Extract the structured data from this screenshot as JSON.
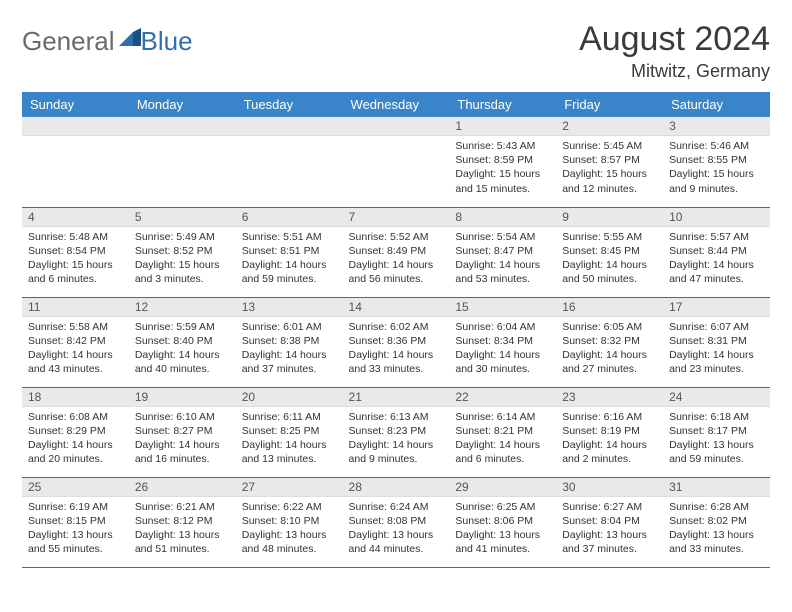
{
  "brand": {
    "part1": "General",
    "part2": "Blue"
  },
  "title": "August 2024",
  "location": "Mitwitz, Germany",
  "colors": {
    "header_bg": "#3a85c9",
    "header_text": "#ffffff",
    "daynum_bg": "#e9e9e9",
    "row_border": "#2f6fb0",
    "text": "#333333",
    "logo_gray": "#6b6b6b",
    "logo_blue": "#2f6fb0"
  },
  "weekdays": [
    "Sunday",
    "Monday",
    "Tuesday",
    "Wednesday",
    "Thursday",
    "Friday",
    "Saturday"
  ],
  "weeks": [
    [
      {
        "n": "",
        "lines": []
      },
      {
        "n": "",
        "lines": []
      },
      {
        "n": "",
        "lines": []
      },
      {
        "n": "",
        "lines": []
      },
      {
        "n": "1",
        "lines": [
          "Sunrise: 5:43 AM",
          "Sunset: 8:59 PM",
          "Daylight: 15 hours and 15 minutes."
        ]
      },
      {
        "n": "2",
        "lines": [
          "Sunrise: 5:45 AM",
          "Sunset: 8:57 PM",
          "Daylight: 15 hours and 12 minutes."
        ]
      },
      {
        "n": "3",
        "lines": [
          "Sunrise: 5:46 AM",
          "Sunset: 8:55 PM",
          "Daylight: 15 hours and 9 minutes."
        ]
      }
    ],
    [
      {
        "n": "4",
        "lines": [
          "Sunrise: 5:48 AM",
          "Sunset: 8:54 PM",
          "Daylight: 15 hours and 6 minutes."
        ]
      },
      {
        "n": "5",
        "lines": [
          "Sunrise: 5:49 AM",
          "Sunset: 8:52 PM",
          "Daylight: 15 hours and 3 minutes."
        ]
      },
      {
        "n": "6",
        "lines": [
          "Sunrise: 5:51 AM",
          "Sunset: 8:51 PM",
          "Daylight: 14 hours and 59 minutes."
        ]
      },
      {
        "n": "7",
        "lines": [
          "Sunrise: 5:52 AM",
          "Sunset: 8:49 PM",
          "Daylight: 14 hours and 56 minutes."
        ]
      },
      {
        "n": "8",
        "lines": [
          "Sunrise: 5:54 AM",
          "Sunset: 8:47 PM",
          "Daylight: 14 hours and 53 minutes."
        ]
      },
      {
        "n": "9",
        "lines": [
          "Sunrise: 5:55 AM",
          "Sunset: 8:45 PM",
          "Daylight: 14 hours and 50 minutes."
        ]
      },
      {
        "n": "10",
        "lines": [
          "Sunrise: 5:57 AM",
          "Sunset: 8:44 PM",
          "Daylight: 14 hours and 47 minutes."
        ]
      }
    ],
    [
      {
        "n": "11",
        "lines": [
          "Sunrise: 5:58 AM",
          "Sunset: 8:42 PM",
          "Daylight: 14 hours and 43 minutes."
        ]
      },
      {
        "n": "12",
        "lines": [
          "Sunrise: 5:59 AM",
          "Sunset: 8:40 PM",
          "Daylight: 14 hours and 40 minutes."
        ]
      },
      {
        "n": "13",
        "lines": [
          "Sunrise: 6:01 AM",
          "Sunset: 8:38 PM",
          "Daylight: 14 hours and 37 minutes."
        ]
      },
      {
        "n": "14",
        "lines": [
          "Sunrise: 6:02 AM",
          "Sunset: 8:36 PM",
          "Daylight: 14 hours and 33 minutes."
        ]
      },
      {
        "n": "15",
        "lines": [
          "Sunrise: 6:04 AM",
          "Sunset: 8:34 PM",
          "Daylight: 14 hours and 30 minutes."
        ]
      },
      {
        "n": "16",
        "lines": [
          "Sunrise: 6:05 AM",
          "Sunset: 8:32 PM",
          "Daylight: 14 hours and 27 minutes."
        ]
      },
      {
        "n": "17",
        "lines": [
          "Sunrise: 6:07 AM",
          "Sunset: 8:31 PM",
          "Daylight: 14 hours and 23 minutes."
        ]
      }
    ],
    [
      {
        "n": "18",
        "lines": [
          "Sunrise: 6:08 AM",
          "Sunset: 8:29 PM",
          "Daylight: 14 hours and 20 minutes."
        ]
      },
      {
        "n": "19",
        "lines": [
          "Sunrise: 6:10 AM",
          "Sunset: 8:27 PM",
          "Daylight: 14 hours and 16 minutes."
        ]
      },
      {
        "n": "20",
        "lines": [
          "Sunrise: 6:11 AM",
          "Sunset: 8:25 PM",
          "Daylight: 14 hours and 13 minutes."
        ]
      },
      {
        "n": "21",
        "lines": [
          "Sunrise: 6:13 AM",
          "Sunset: 8:23 PM",
          "Daylight: 14 hours and 9 minutes."
        ]
      },
      {
        "n": "22",
        "lines": [
          "Sunrise: 6:14 AM",
          "Sunset: 8:21 PM",
          "Daylight: 14 hours and 6 minutes."
        ]
      },
      {
        "n": "23",
        "lines": [
          "Sunrise: 6:16 AM",
          "Sunset: 8:19 PM",
          "Daylight: 14 hours and 2 minutes."
        ]
      },
      {
        "n": "24",
        "lines": [
          "Sunrise: 6:18 AM",
          "Sunset: 8:17 PM",
          "Daylight: 13 hours and 59 minutes."
        ]
      }
    ],
    [
      {
        "n": "25",
        "lines": [
          "Sunrise: 6:19 AM",
          "Sunset: 8:15 PM",
          "Daylight: 13 hours and 55 minutes."
        ]
      },
      {
        "n": "26",
        "lines": [
          "Sunrise: 6:21 AM",
          "Sunset: 8:12 PM",
          "Daylight: 13 hours and 51 minutes."
        ]
      },
      {
        "n": "27",
        "lines": [
          "Sunrise: 6:22 AM",
          "Sunset: 8:10 PM",
          "Daylight: 13 hours and 48 minutes."
        ]
      },
      {
        "n": "28",
        "lines": [
          "Sunrise: 6:24 AM",
          "Sunset: 8:08 PM",
          "Daylight: 13 hours and 44 minutes."
        ]
      },
      {
        "n": "29",
        "lines": [
          "Sunrise: 6:25 AM",
          "Sunset: 8:06 PM",
          "Daylight: 13 hours and 41 minutes."
        ]
      },
      {
        "n": "30",
        "lines": [
          "Sunrise: 6:27 AM",
          "Sunset: 8:04 PM",
          "Daylight: 13 hours and 37 minutes."
        ]
      },
      {
        "n": "31",
        "lines": [
          "Sunrise: 6:28 AM",
          "Sunset: 8:02 PM",
          "Daylight: 13 hours and 33 minutes."
        ]
      }
    ]
  ]
}
